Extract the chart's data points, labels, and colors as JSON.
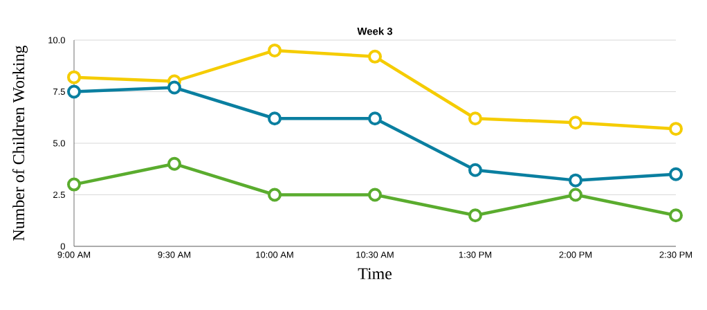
{
  "chart_data": {
    "type": "line",
    "title": "Week 3",
    "xlabel": "Time",
    "ylabel": "Number of Children Working",
    "categories": [
      "9:00 AM",
      "9:30 AM",
      "10:00 AM",
      "10:30 AM",
      "1:30 PM",
      "2:00 PM",
      "2:30 PM"
    ],
    "series": [
      {
        "color": "#f5cc00",
        "values": [
          8.2,
          8.0,
          9.5,
          9.2,
          6.2,
          6.0,
          5.7
        ]
      },
      {
        "color": "#0a7fa0",
        "values": [
          7.5,
          7.7,
          6.2,
          6.2,
          3.7,
          3.2,
          3.5
        ]
      },
      {
        "color": "#5aac2e",
        "values": [
          3.0,
          4.0,
          2.5,
          2.5,
          1.5,
          2.5,
          1.5
        ]
      }
    ],
    "ylim": [
      0,
      10
    ],
    "yticks": [
      0,
      2.5,
      {
        "value": 5,
        "label": "5.0"
      },
      7.5,
      {
        "value": 10,
        "label": "10.0"
      }
    ],
    "grid": "y",
    "marker": "circle",
    "line_style": "solid"
  }
}
